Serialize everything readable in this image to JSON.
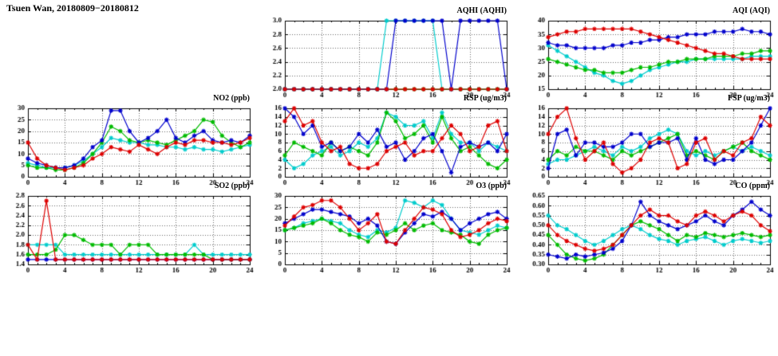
{
  "header": {
    "title": "Tsuen Wan, 20180809−20180812"
  },
  "chart_data": [
    {
      "type": "line",
      "title": "AQHI (AQHI)",
      "x_range": [
        0,
        24
      ],
      "xticks": [
        0,
        4,
        8,
        12,
        16,
        20,
        24
      ],
      "ylim": [
        2.0,
        3.0
      ],
      "yticks": [
        2.0,
        2.2,
        2.4,
        2.6,
        2.8,
        3.0
      ],
      "ydec": 1,
      "series": [
        {
          "name": "red",
          "color": "#dd0000",
          "values": [
            2,
            2,
            2,
            2,
            2,
            2,
            2,
            2,
            2,
            2,
            2,
            2,
            2,
            2,
            2,
            2,
            2,
            2,
            2,
            2,
            2,
            2,
            2,
            2,
            2
          ]
        },
        {
          "name": "blue",
          "color": "#0000cc",
          "values": [
            2,
            2,
            2,
            2,
            2,
            2,
            2,
            2,
            2,
            2,
            2,
            2,
            3,
            3,
            3,
            3,
            3,
            3,
            2,
            3,
            3,
            3,
            3,
            3,
            2
          ]
        },
        {
          "name": "green",
          "color": "#00bb00",
          "values": [
            2,
            2,
            2,
            2,
            2,
            2,
            2,
            2,
            2,
            2,
            2,
            2,
            2,
            2,
            2,
            2,
            2,
            2,
            2,
            2,
            2,
            2,
            2,
            2,
            2
          ]
        },
        {
          "name": "cyan",
          "color": "#00cccc",
          "values": [
            2,
            2,
            2,
            2,
            2,
            2,
            2,
            2,
            2,
            2,
            2,
            3,
            3,
            3,
            3,
            3,
            3,
            2,
            2,
            2,
            2,
            2,
            2,
            2,
            2
          ]
        }
      ]
    },
    {
      "type": "line",
      "title": "AQI (AQI)",
      "x_range": [
        0,
        24
      ],
      "xticks": [
        0,
        4,
        8,
        12,
        16,
        20,
        24
      ],
      "ylim": [
        15,
        40
      ],
      "yticks": [
        15,
        20,
        25,
        30,
        35,
        40
      ],
      "ydec": 0,
      "series": [
        {
          "name": "red",
          "color": "#dd0000",
          "values": [
            34,
            35,
            36,
            36,
            37,
            37,
            37,
            37,
            37,
            37,
            36,
            35,
            34,
            33,
            32,
            31,
            30,
            29,
            28,
            28,
            27,
            26,
            26,
            26,
            26
          ]
        },
        {
          "name": "blue",
          "color": "#0000cc",
          "values": [
            32,
            31,
            31,
            30,
            30,
            30,
            30,
            31,
            31,
            32,
            32,
            33,
            33,
            34,
            34,
            35,
            35,
            35,
            36,
            36,
            36,
            37,
            36,
            36,
            35
          ]
        },
        {
          "name": "green",
          "color": "#00bb00",
          "values": [
            26,
            25,
            24,
            23,
            22,
            22,
            21,
            21,
            21,
            22,
            23,
            23,
            24,
            25,
            25,
            26,
            26,
            26,
            27,
            27,
            27,
            28,
            28,
            29,
            29
          ]
        },
        {
          "name": "cyan",
          "color": "#00cccc",
          "values": [
            31,
            29,
            27,
            25,
            23,
            21,
            20,
            18,
            17,
            18,
            20,
            22,
            23,
            24,
            25,
            25,
            26,
            26,
            26,
            26,
            26,
            26,
            27,
            27,
            27
          ]
        }
      ]
    },
    {
      "type": "line",
      "title": "NO2 (ppb)",
      "x_range": [
        0,
        24
      ],
      "xticks": [
        0,
        4,
        8,
        12,
        16,
        20,
        24
      ],
      "ylim": [
        0,
        30
      ],
      "yticks": [
        0,
        5,
        10,
        15,
        20,
        25,
        30
      ],
      "ydec": 0,
      "series": [
        {
          "name": "red",
          "color": "#dd0000",
          "values": [
            15,
            8,
            5,
            4,
            3,
            4,
            5,
            8,
            10,
            13,
            12,
            11,
            14,
            12,
            10,
            13,
            15,
            14,
            16,
            16,
            15,
            15,
            14,
            15,
            17
          ]
        },
        {
          "name": "blue",
          "color": "#0000cc",
          "values": [
            8,
            6,
            5,
            4,
            4,
            5,
            8,
            13,
            16,
            29,
            29,
            20,
            15,
            17,
            20,
            25,
            17,
            15,
            18,
            20,
            16,
            15,
            16,
            15,
            18
          ]
        },
        {
          "name": "green",
          "color": "#00bb00",
          "values": [
            5,
            4,
            4,
            3,
            3,
            4,
            6,
            10,
            15,
            22,
            20,
            16,
            15,
            16,
            15,
            14,
            16,
            18,
            20,
            25,
            24,
            18,
            15,
            13,
            15
          ]
        },
        {
          "name": "cyan",
          "color": "#00cccc",
          "values": [
            6,
            5,
            4,
            4,
            4,
            5,
            7,
            10,
            13,
            17,
            16,
            15,
            15,
            14,
            14,
            13,
            13,
            12,
            13,
            12,
            12,
            11,
            12,
            13,
            14
          ]
        }
      ]
    },
    {
      "type": "line",
      "title": "RSP (ug/m3)",
      "x_range": [
        0,
        24
      ],
      "xticks": [
        0,
        4,
        8,
        12,
        16,
        20,
        24
      ],
      "ylim": [
        0,
        16
      ],
      "yticks": [
        0,
        2,
        4,
        6,
        8,
        10,
        12,
        14,
        16
      ],
      "ydec": 0,
      "series": [
        {
          "name": "red",
          "color": "#dd0000",
          "values": [
            13,
            16,
            12,
            13,
            8,
            6,
            7,
            3,
            2,
            2,
            3,
            6,
            7,
            8,
            5,
            6,
            6,
            9,
            12,
            10,
            6,
            7,
            12,
            13,
            6
          ]
        },
        {
          "name": "blue",
          "color": "#0000cc",
          "values": [
            16,
            14,
            10,
            12,
            7,
            8,
            6,
            7,
            10,
            8,
            11,
            7,
            8,
            4,
            6,
            9,
            10,
            6,
            1,
            7,
            8,
            7,
            8,
            6,
            10
          ]
        },
        {
          "name": "green",
          "color": "#00bb00",
          "values": [
            5,
            8,
            7,
            6,
            5,
            8,
            6,
            7,
            6,
            5,
            8,
            15,
            13,
            9,
            10,
            12,
            8,
            14,
            9,
            6,
            7,
            5,
            3,
            2,
            4
          ]
        },
        {
          "name": "cyan",
          "color": "#00cccc",
          "values": [
            4,
            2,
            3,
            5,
            6,
            7,
            5,
            6,
            8,
            7,
            9,
            15,
            14,
            12,
            12,
            13,
            9,
            15,
            10,
            8,
            8,
            6,
            8,
            7,
            6
          ]
        }
      ]
    },
    {
      "type": "line",
      "title": "FSP (ug/m3)",
      "x_range": [
        0,
        24
      ],
      "xticks": [
        0,
        4,
        8,
        12,
        16,
        20,
        24
      ],
      "ylim": [
        0,
        16
      ],
      "yticks": [
        0,
        2,
        4,
        6,
        8,
        10,
        12,
        14,
        16
      ],
      "ydec": 0,
      "series": [
        {
          "name": "red",
          "color": "#dd0000",
          "values": [
            10,
            14,
            16,
            9,
            4,
            6,
            8,
            3,
            1,
            2,
            4,
            8,
            9,
            8,
            2,
            3,
            8,
            9,
            4,
            6,
            5,
            8,
            9,
            14,
            12
          ]
        },
        {
          "name": "blue",
          "color": "#0000cc",
          "values": [
            2,
            10,
            11,
            5,
            8,
            8,
            7,
            7,
            8,
            10,
            10,
            7,
            8,
            8,
            9,
            4,
            9,
            4,
            3,
            4,
            4,
            6,
            8,
            12,
            16
          ]
        },
        {
          "name": "green",
          "color": "#00bb00",
          "values": [
            4,
            6,
            5,
            7,
            6,
            6,
            5,
            4,
            6,
            5,
            6,
            7,
            8,
            9,
            10,
            5,
            6,
            5,
            4,
            6,
            7,
            8,
            6,
            5,
            4
          ]
        },
        {
          "name": "cyan",
          "color": "#00cccc",
          "values": [
            3,
            4,
            4,
            5,
            6,
            7,
            6,
            5,
            7,
            6,
            7,
            9,
            10,
            11,
            10,
            6,
            5,
            6,
            5,
            6,
            7,
            6,
            7,
            6,
            5
          ]
        }
      ]
    },
    {
      "type": "line",
      "title": "SO2 (ppb)",
      "x_range": [
        0,
        24
      ],
      "xticks": [
        0,
        4,
        8,
        12,
        16,
        20,
        24
      ],
      "ylim": [
        1.4,
        2.8
      ],
      "yticks": [
        1.4,
        1.6,
        1.8,
        2.0,
        2.2,
        2.4,
        2.6,
        2.8
      ],
      "ydec": 1,
      "series": [
        {
          "name": "red",
          "color": "#dd0000",
          "values": [
            1.8,
            1.5,
            2.7,
            1.5,
            1.5,
            1.5,
            1.5,
            1.5,
            1.5,
            1.5,
            1.5,
            1.5,
            1.5,
            1.5,
            1.5,
            1.5,
            1.5,
            1.5,
            1.5,
            1.5,
            1.5,
            1.5,
            1.5,
            1.5,
            1.5
          ]
        },
        {
          "name": "blue",
          "color": "#0000cc",
          "values": [
            1.5,
            1.5,
            1.5,
            1.5,
            1.5,
            1.5,
            1.5,
            1.5,
            1.5,
            1.5,
            1.5,
            1.5,
            1.5,
            1.5,
            1.5,
            1.5,
            1.5,
            1.5,
            1.5,
            1.5,
            1.5,
            1.5,
            1.5,
            1.5,
            1.5
          ]
        },
        {
          "name": "green",
          "color": "#00bb00",
          "values": [
            1.6,
            1.6,
            1.6,
            1.7,
            2.0,
            2.0,
            1.9,
            1.8,
            1.8,
            1.8,
            1.6,
            1.8,
            1.8,
            1.8,
            1.6,
            1.6,
            1.6,
            1.6,
            1.6,
            1.6,
            1.5,
            1.5,
            1.5,
            1.5,
            1.5
          ]
        },
        {
          "name": "cyan",
          "color": "#00cccc",
          "values": [
            1.8,
            1.8,
            1.8,
            1.8,
            1.6,
            1.6,
            1.6,
            1.6,
            1.6,
            1.6,
            1.6,
            1.6,
            1.6,
            1.6,
            1.6,
            1.6,
            1.6,
            1.6,
            1.8,
            1.6,
            1.6,
            1.6,
            1.6,
            1.6,
            1.6
          ]
        }
      ]
    },
    {
      "type": "line",
      "title": "O3 (ppb)",
      "x_range": [
        0,
        24
      ],
      "xticks": [
        0,
        4,
        8,
        12,
        16,
        20,
        24
      ],
      "ylim": [
        0,
        30
      ],
      "yticks": [
        0,
        5,
        10,
        15,
        20,
        25,
        30
      ],
      "ydec": 0,
      "series": [
        {
          "name": "red",
          "color": "#dd0000",
          "values": [
            17,
            21,
            25,
            26,
            28,
            28,
            25,
            20,
            15,
            18,
            22,
            10,
            9,
            15,
            20,
            25,
            24,
            22,
            15,
            12,
            13,
            15,
            18,
            20,
            19
          ]
        },
        {
          "name": "blue",
          "color": "#0000cc",
          "values": [
            18,
            20,
            22,
            24,
            24,
            23,
            22,
            21,
            18,
            20,
            17,
            10,
            9,
            14,
            18,
            22,
            21,
            23,
            20,
            15,
            18,
            20,
            22,
            23,
            20
          ]
        },
        {
          "name": "green",
          "color": "#00bb00",
          "values": [
            15,
            16,
            17,
            18,
            20,
            18,
            15,
            13,
            12,
            10,
            14,
            13,
            15,
            18,
            15,
            17,
            18,
            15,
            14,
            13,
            10,
            9,
            13,
            15,
            16
          ]
        },
        {
          "name": "cyan",
          "color": "#00cccc",
          "values": [
            15,
            16,
            18,
            19,
            20,
            19,
            18,
            15,
            13,
            12,
            15,
            14,
            16,
            28,
            27,
            25,
            28,
            26,
            20,
            15,
            14,
            13,
            15,
            17,
            16
          ]
        }
      ]
    },
    {
      "type": "line",
      "title": "CO (ppm)",
      "x_range": [
        0,
        24
      ],
      "xticks": [
        0,
        4,
        8,
        12,
        16,
        20,
        24
      ],
      "ylim": [
        0.3,
        0.65
      ],
      "yticks": [
        0.3,
        0.35,
        0.4,
        0.45,
        0.5,
        0.55,
        0.6,
        0.65
      ],
      "ydec": 2,
      "series": [
        {
          "name": "red",
          "color": "#dd0000",
          "values": [
            0.5,
            0.45,
            0.42,
            0.4,
            0.38,
            0.37,
            0.38,
            0.4,
            0.45,
            0.5,
            0.55,
            0.58,
            0.55,
            0.55,
            0.52,
            0.5,
            0.55,
            0.57,
            0.55,
            0.52,
            0.55,
            0.57,
            0.55,
            0.5,
            0.47
          ]
        },
        {
          "name": "blue",
          "color": "#0000cc",
          "values": [
            0.35,
            0.34,
            0.33,
            0.35,
            0.34,
            0.35,
            0.36,
            0.38,
            0.42,
            0.5,
            0.62,
            0.55,
            0.52,
            0.5,
            0.48,
            0.5,
            0.52,
            0.55,
            0.52,
            0.5,
            0.55,
            0.58,
            0.62,
            0.58,
            0.55
          ]
        },
        {
          "name": "green",
          "color": "#00bb00",
          "values": [
            0.45,
            0.4,
            0.35,
            0.33,
            0.32,
            0.33,
            0.35,
            0.4,
            0.45,
            0.5,
            0.52,
            0.5,
            0.48,
            0.45,
            0.42,
            0.45,
            0.44,
            0.46,
            0.45,
            0.44,
            0.45,
            0.46,
            0.45,
            0.44,
            0.45
          ]
        },
        {
          "name": "cyan",
          "color": "#00cccc",
          "values": [
            0.55,
            0.5,
            0.48,
            0.45,
            0.42,
            0.4,
            0.42,
            0.45,
            0.48,
            0.5,
            0.48,
            0.45,
            0.43,
            0.42,
            0.4,
            0.42,
            0.43,
            0.44,
            0.42,
            0.4,
            0.42,
            0.43,
            0.42,
            0.41,
            0.42
          ]
        }
      ]
    }
  ]
}
